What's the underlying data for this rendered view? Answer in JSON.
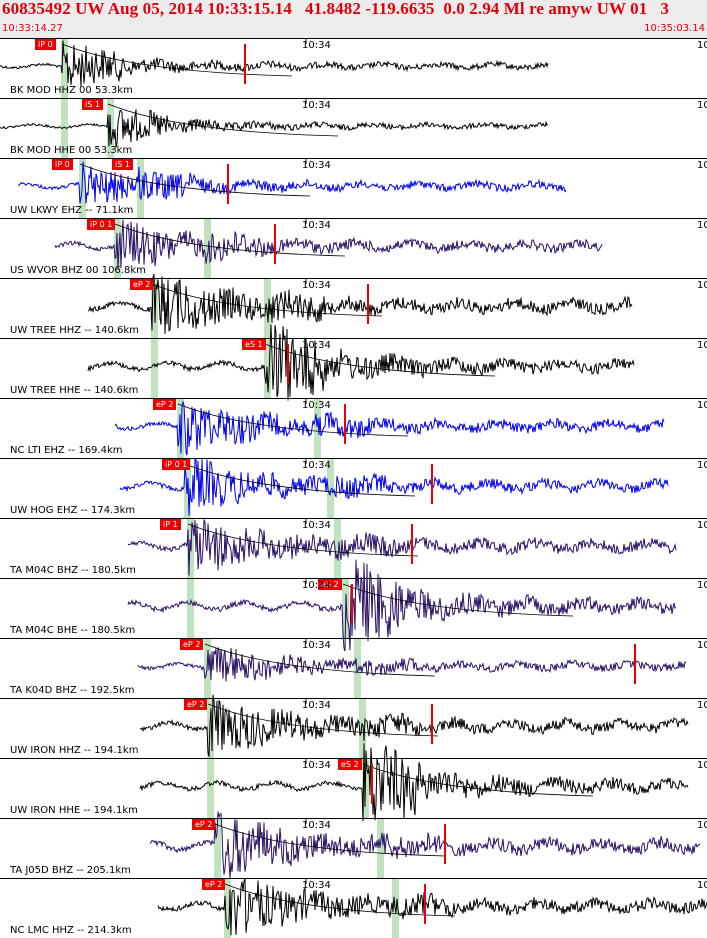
{
  "header": {
    "title": "60835492 UW Aug 05, 2014 10:33:15.14   41.8482 -119.6635  0.0 2.94 Ml re amyw UW 01   3",
    "start_time": "10:33:14.27",
    "end_time": "10:35:03.14",
    "background": "#ececec",
    "text_color": "#e0000a"
  },
  "minute_tick_label": "10:34",
  "edge_tick_label": "10:",
  "colors": {
    "pick": "#ee0000",
    "window": "#bfe3bf",
    "trace_black": "#000000",
    "trace_blue": "#0000ee",
    "trace_purple": "#2a1066",
    "separator": "#000000"
  },
  "traces": [
    {
      "label": "BK MOD HHZ 00 53.3km",
      "color": "black",
      "picks": [
        "iP 0"
      ]
    },
    {
      "label": "BK MOD HHE 00 53.3km",
      "color": "black",
      "picks": [
        "iS 1"
      ]
    },
    {
      "label": "UW LKWY EHZ -- 71.1km",
      "color": "blue",
      "picks": [
        "iP 0",
        "iS 1"
      ]
    },
    {
      "label": "US WVOR BHZ 00 106.8km",
      "color": "purple",
      "picks": [
        "iP 0 1"
      ]
    },
    {
      "label": "UW TREE HHZ -- 140.6km",
      "color": "black",
      "picks": [
        "eP 2"
      ]
    },
    {
      "label": "UW TREE HHE -- 140.6km",
      "color": "black",
      "picks": [
        "eS 1"
      ]
    },
    {
      "label": "NC LTI EHZ -- 169.4km",
      "color": "blue",
      "picks": [
        "eP 2"
      ]
    },
    {
      "label": "UW HOG EHZ -- 174.3km",
      "color": "blue",
      "picks": [
        "iP 0 1"
      ]
    },
    {
      "label": "TA M04C BHZ -- 180.5km",
      "color": "purple",
      "picks": [
        "iP 1"
      ]
    },
    {
      "label": "TA M04C BHE -- 180.5km",
      "color": "purple",
      "picks": [
        "eS 2"
      ]
    },
    {
      "label": "TA K04D BHZ -- 192.5km",
      "color": "purple",
      "picks": [
        "eP 2"
      ]
    },
    {
      "label": "UW IRON HHZ -- 194.1km",
      "color": "black",
      "picks": [
        "eP 2"
      ]
    },
    {
      "label": "UW IRON HHE -- 194.1km",
      "color": "black",
      "picks": [
        "eS 2"
      ]
    },
    {
      "label": "TA J05D BHZ -- 205.1km",
      "color": "purple",
      "picks": [
        "eP 2"
      ]
    },
    {
      "label": "NC LMC HHZ -- 214.3km",
      "color": "black",
      "picks": [
        "eP 2"
      ]
    }
  ]
}
